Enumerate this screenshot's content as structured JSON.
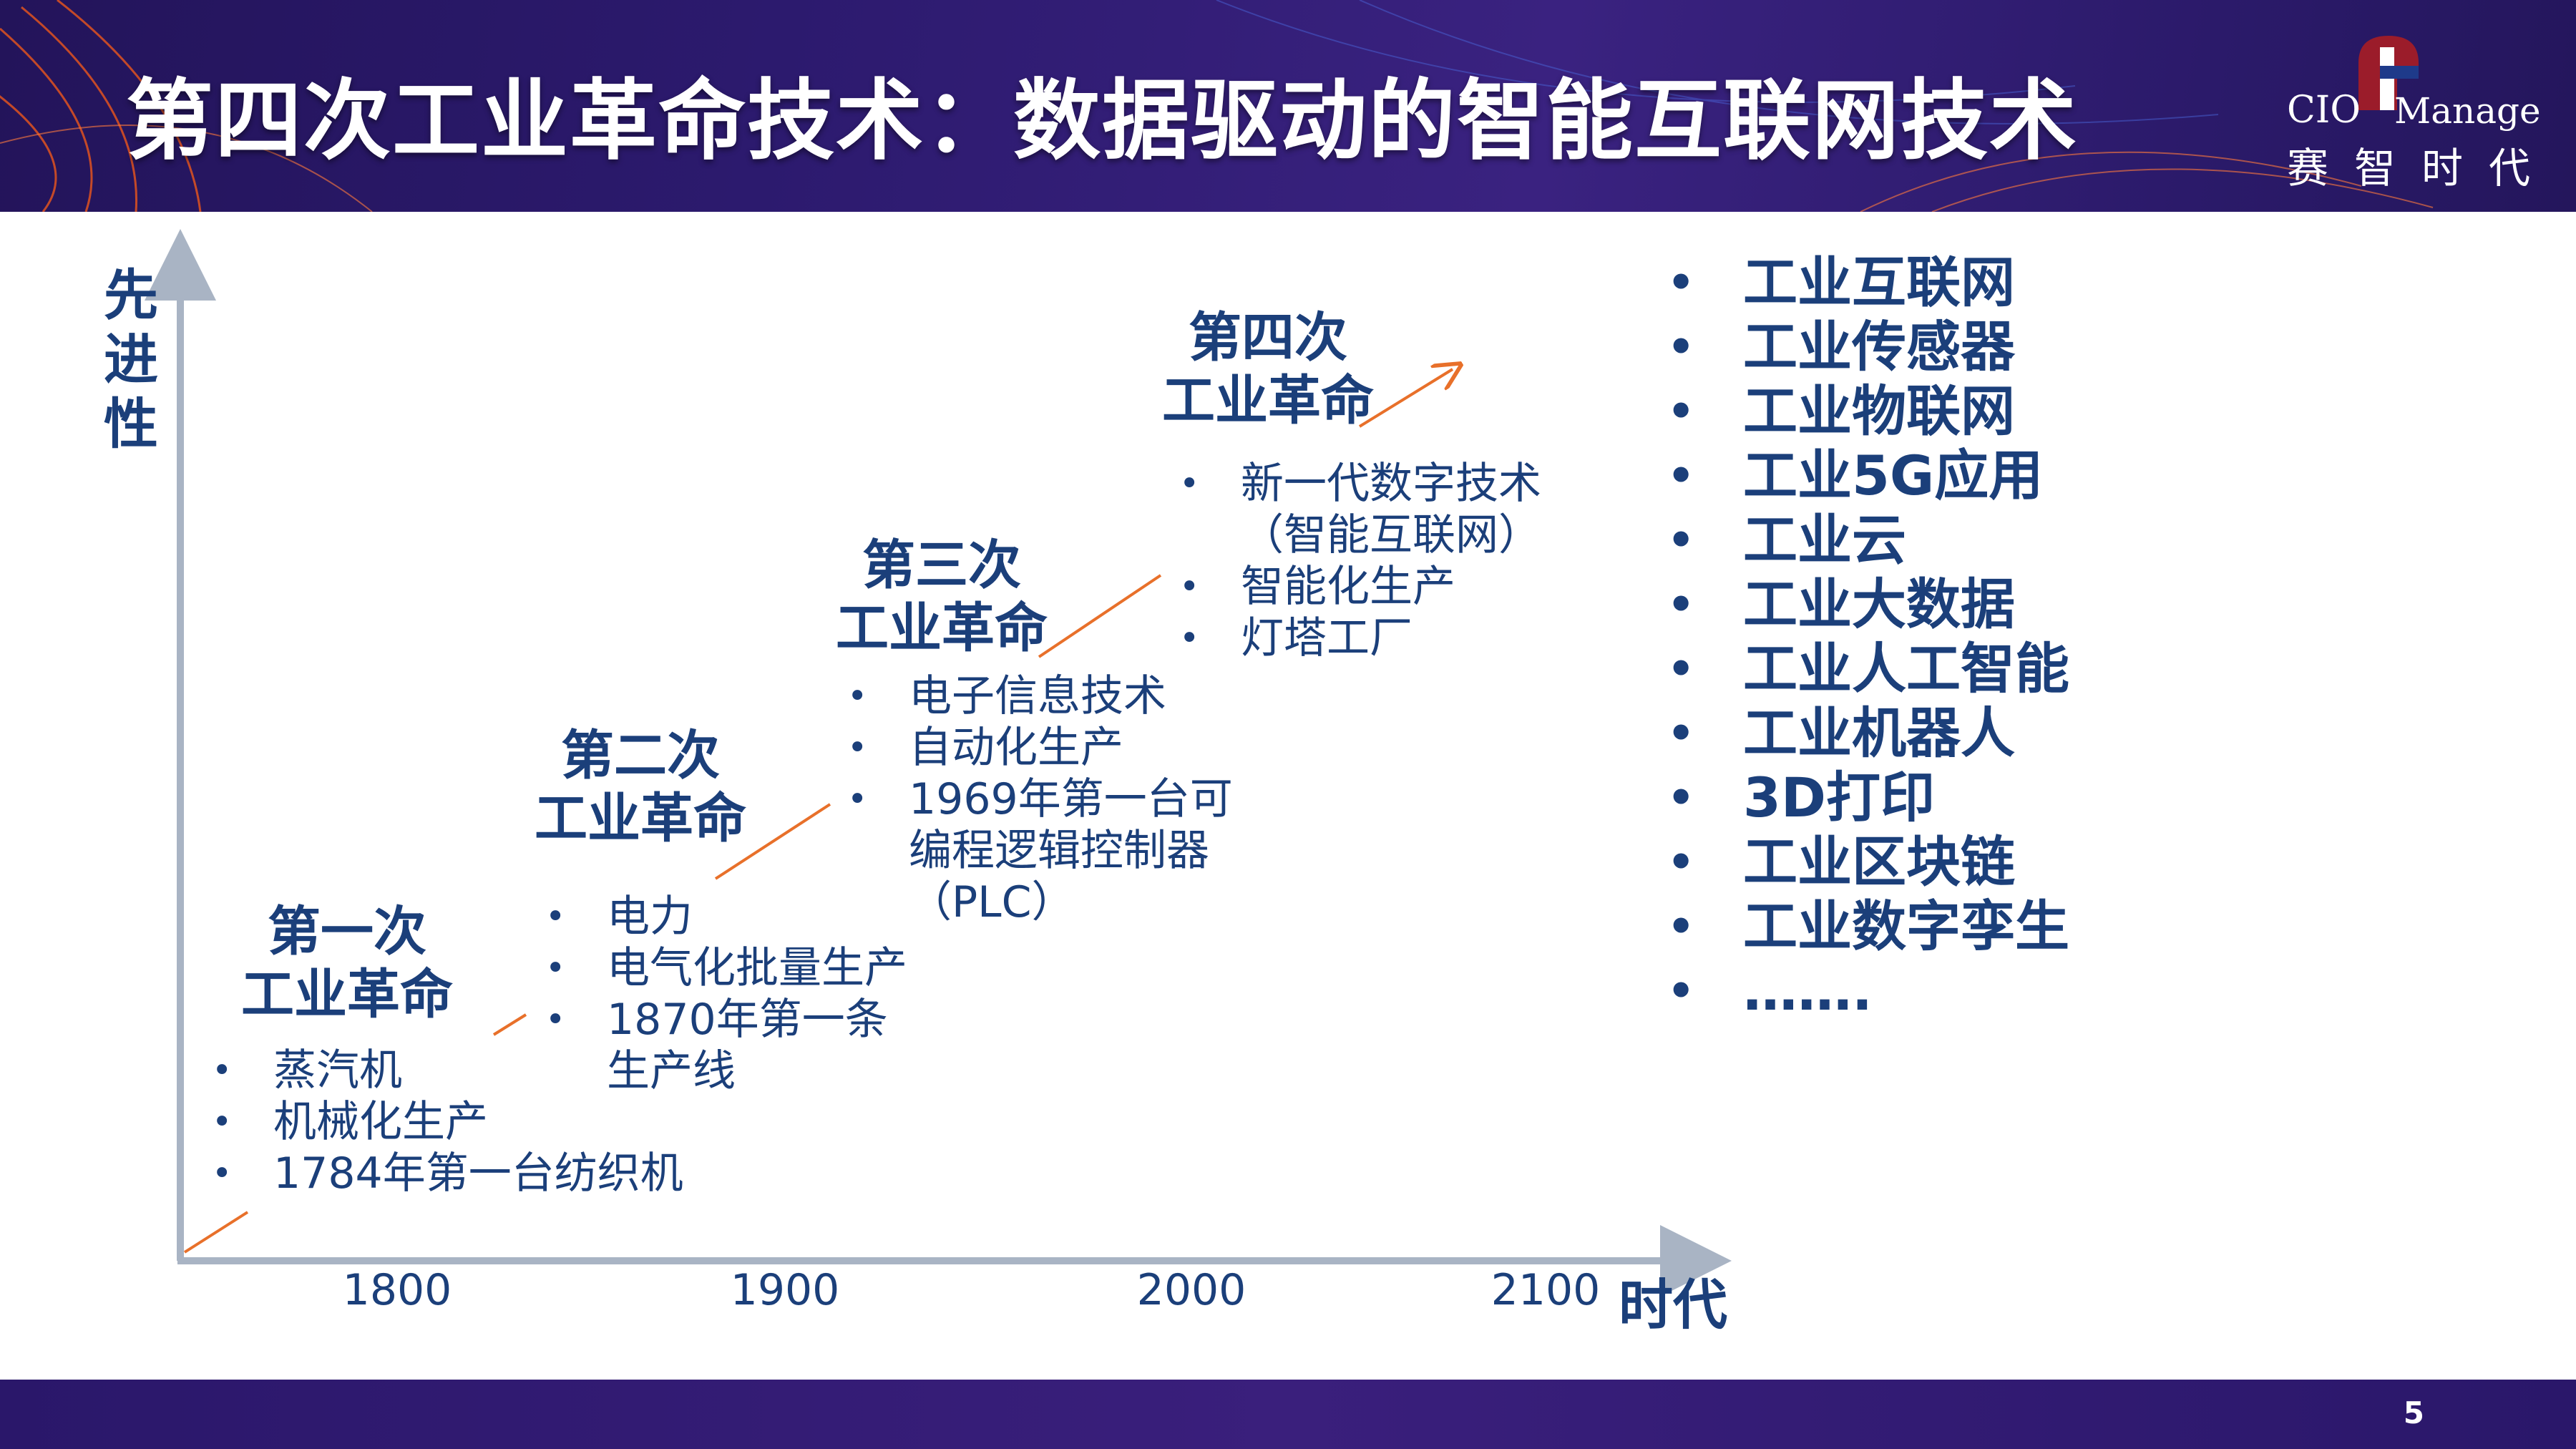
{
  "header": {
    "title": "第四次工业革命技术：数据驱动的智能互联网技术"
  },
  "logo": {
    "text_cio": "CIO",
    "text_manage": "Manage",
    "text_cn": "赛智时代"
  },
  "axes": {
    "y_label": "先进性",
    "x_label": "时代",
    "x_ticks": [
      "1800",
      "1900",
      "2000",
      "2100"
    ]
  },
  "stages": [
    {
      "title_1": "第一次",
      "title_2": "工业革命",
      "items": [
        "蒸汽机",
        "机械化生产",
        "1784年第一台纺织机"
      ]
    },
    {
      "title_1": "第二次",
      "title_2": "工业革命",
      "items": [
        "电力",
        "电气化批量生产",
        "1870年第一条",
        "生产线"
      ]
    },
    {
      "title_1": "第三次",
      "title_2": "工业革命",
      "items": [
        "电子信息技术",
        "自动化生产",
        "1969年第一台可",
        "编程逻辑控制器",
        "（PLC）"
      ]
    },
    {
      "title_1": "第四次",
      "title_2": "工业革命",
      "items": [
        "新一代数字技术",
        "（智能互联网）",
        "智能化生产",
        "灯塔工厂"
      ]
    }
  ],
  "technologies": [
    "工业互联网",
    "工业传感器",
    "工业物联网",
    "工业5G应用",
    "工业云",
    "工业大数据",
    "工业人工智能",
    "工业机器人",
    "3D打印",
    "工业区块链",
    "工业数字孪生",
    "……."
  ],
  "footer": {
    "page_number": "5"
  },
  "colors": {
    "text": "#1b3f7a",
    "accent_arrow": "#e8702a",
    "axis": "#a9b4c4",
    "band": "#2a176a"
  }
}
